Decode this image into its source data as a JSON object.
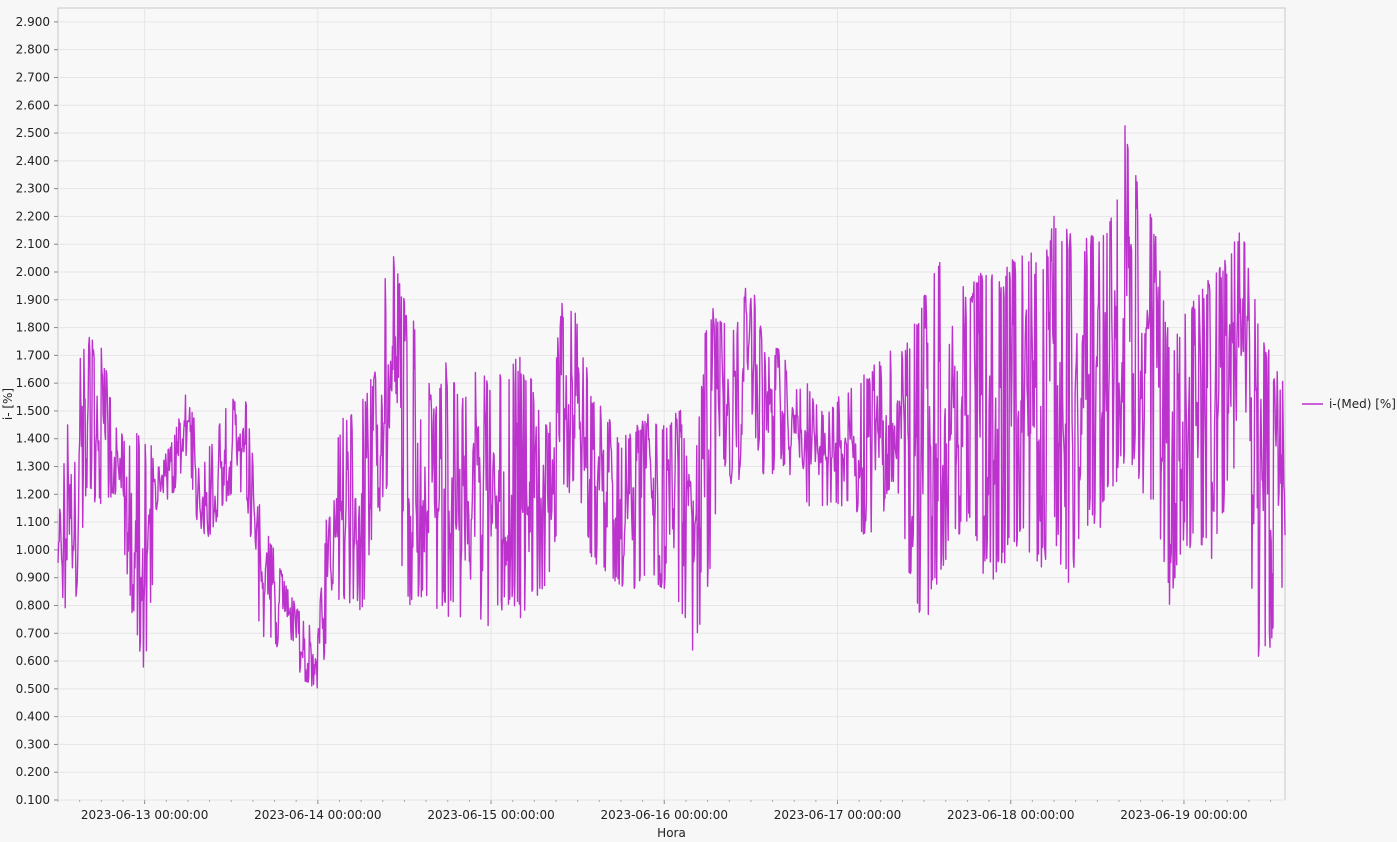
{
  "chart_data": {
    "type": "line",
    "title": "",
    "xlabel": "Hora",
    "ylabel": "i- [%]",
    "ylim": [
      0.1,
      2.95
    ],
    "yticks": [
      0.1,
      0.2,
      0.3,
      0.4,
      0.5,
      0.6,
      0.7,
      0.8,
      0.9,
      1.0,
      1.1,
      1.2,
      1.3,
      1.4,
      1.5,
      1.6,
      1.7,
      1.8,
      1.9,
      2.0,
      2.1,
      2.2,
      2.3,
      2.4,
      2.5,
      2.6,
      2.7,
      2.8,
      2.9
    ],
    "ytick_labels": [
      "0.100",
      "0.200",
      "0.300",
      "0.400",
      "0.500",
      "0.600",
      "0.700",
      "0.800",
      "0.900",
      "1.000",
      "1.100",
      "1.200",
      "1.300",
      "1.400",
      "1.500",
      "1.600",
      "1.700",
      "1.800",
      "1.900",
      "2.000",
      "2.100",
      "2.200",
      "2.300",
      "2.400",
      "2.500",
      "2.600",
      "2.700",
      "2.800",
      "2.900"
    ],
    "xlim": [
      "2023-06-12 12:00",
      "2023-06-19 14:00"
    ],
    "xticks": [
      "2023-06-13 00:00:00",
      "2023-06-14 00:00:00",
      "2023-06-15 00:00:00",
      "2023-06-16 00:00:00",
      "2023-06-17 00:00:00",
      "2023-06-18 00:00:00",
      "2023-06-19 00:00:00"
    ],
    "grid": true,
    "legend_position": "right",
    "series": [
      {
        "name": "i-(Med) [%]",
        "color": "#bb33cc",
        "envelope": [
          {
            "x": "2023-06-12 12:00",
            "y": [
              0.85,
              1.1
            ]
          },
          {
            "x": "2023-06-12 14:00",
            "y": [
              0.7,
              1.65
            ]
          },
          {
            "x": "2023-06-12 16:00",
            "y": [
              1.2,
              1.78
            ]
          },
          {
            "x": "2023-06-12 18:00",
            "y": [
              1.15,
              1.75
            ]
          },
          {
            "x": "2023-06-12 20:00",
            "y": [
              1.2,
              1.45
            ]
          },
          {
            "x": "2023-06-12 22:00",
            "y": [
              0.8,
              1.4
            ]
          },
          {
            "x": "2023-06-13 00:00",
            "y": [
              0.55,
              1.45
            ]
          },
          {
            "x": "2023-06-13 02:00",
            "y": [
              1.15,
              1.3
            ]
          },
          {
            "x": "2023-06-13 04:00",
            "y": [
              1.2,
              1.4
            ]
          },
          {
            "x": "2023-06-13 06:00",
            "y": [
              1.35,
              1.6
            ]
          },
          {
            "x": "2023-06-13 08:00",
            "y": [
              0.95,
              1.3
            ]
          },
          {
            "x": "2023-06-13 10:00",
            "y": [
              1.1,
              1.45
            ]
          },
          {
            "x": "2023-06-13 12:00",
            "y": [
              1.2,
              1.55
            ]
          },
          {
            "x": "2023-06-13 14:00",
            "y": [
              1.2,
              1.55
            ]
          },
          {
            "x": "2023-06-13 16:00",
            "y": [
              0.7,
              1.15
            ]
          },
          {
            "x": "2023-06-13 18:00",
            "y": [
              0.65,
              1.0
            ]
          },
          {
            "x": "2023-06-13 20:00",
            "y": [
              0.62,
              0.85
            ]
          },
          {
            "x": "2023-06-13 22:00",
            "y": [
              0.52,
              0.75
            ]
          },
          {
            "x": "2023-06-14 00:00",
            "y": [
              0.5,
              0.7
            ]
          },
          {
            "x": "2023-06-14 02:00",
            "y": [
              0.75,
              1.4
            ]
          },
          {
            "x": "2023-06-14 04:00",
            "y": [
              0.8,
              1.5
            ]
          },
          {
            "x": "2023-06-14 06:00",
            "y": [
              0.75,
              1.55
            ]
          },
          {
            "x": "2023-06-14 08:00",
            "y": [
              1.1,
              1.65
            ]
          },
          {
            "x": "2023-06-14 10:00",
            "y": [
              1.2,
              2.15
            ]
          },
          {
            "x": "2023-06-14 12:00",
            "y": [
              0.8,
              1.9
            ]
          },
          {
            "x": "2023-06-14 14:00",
            "y": [
              0.8,
              1.85
            ]
          },
          {
            "x": "2023-06-14 16:00",
            "y": [
              0.8,
              1.5
            ]
          },
          {
            "x": "2023-06-14 18:00",
            "y": [
              0.75,
              1.7
            ]
          },
          {
            "x": "2023-06-14 20:00",
            "y": [
              0.75,
              1.55
            ]
          },
          {
            "x": "2023-06-14 22:00",
            "y": [
              0.75,
              1.7
            ]
          },
          {
            "x": "2023-06-15 00:00",
            "y": [
              0.7,
              1.6
            ]
          },
          {
            "x": "2023-06-15 02:00",
            "y": [
              0.8,
              1.65
            ]
          },
          {
            "x": "2023-06-15 04:00",
            "y": [
              0.75,
              1.7
            ]
          },
          {
            "x": "2023-06-15 06:00",
            "y": [
              0.8,
              1.6
            ]
          },
          {
            "x": "2023-06-15 08:00",
            "y": [
              0.9,
              1.45
            ]
          },
          {
            "x": "2023-06-15 10:00",
            "y": [
              1.2,
              1.95
            ]
          },
          {
            "x": "2023-06-15 12:00",
            "y": [
              1.2,
              1.85
            ]
          },
          {
            "x": "2023-06-15 14:00",
            "y": [
              0.95,
              1.55
            ]
          },
          {
            "x": "2023-06-15 16:00",
            "y": [
              0.9,
              1.5
            ]
          },
          {
            "x": "2023-06-15 18:00",
            "y": [
              0.85,
              1.4
            ]
          },
          {
            "x": "2023-06-15 20:00",
            "y": [
              0.85,
              1.45
            ]
          },
          {
            "x": "2023-06-15 22:00",
            "y": [
              0.9,
              1.5
            ]
          },
          {
            "x": "2023-06-16 00:00",
            "y": [
              0.85,
              1.45
            ]
          },
          {
            "x": "2023-06-16 02:00",
            "y": [
              0.8,
              1.55
            ]
          },
          {
            "x": "2023-06-16 04:00",
            "y": [
              0.6,
              1.2
            ]
          },
          {
            "x": "2023-06-16 06:00",
            "y": [
              0.85,
              1.9
            ]
          },
          {
            "x": "2023-06-16 08:00",
            "y": [
              1.3,
              1.85
            ]
          },
          {
            "x": "2023-06-16 10:00",
            "y": [
              1.2,
              1.8
            ]
          },
          {
            "x": "2023-06-16 12:00",
            "y": [
              1.5,
              2.03
            ]
          },
          {
            "x": "2023-06-16 14:00",
            "y": [
              1.2,
              1.7
            ]
          },
          {
            "x": "2023-06-16 16:00",
            "y": [
              1.3,
              1.75
            ]
          },
          {
            "x": "2023-06-16 18:00",
            "y": [
              1.25,
              1.6
            ]
          },
          {
            "x": "2023-06-16 20:00",
            "y": [
              1.15,
              1.6
            ]
          },
          {
            "x": "2023-06-16 22:00",
            "y": [
              1.15,
              1.5
            ]
          },
          {
            "x": "2023-06-17 00:00",
            "y": [
              1.15,
              1.55
            ]
          },
          {
            "x": "2023-06-17 02:00",
            "y": [
              1.15,
              1.6
            ]
          },
          {
            "x": "2023-06-17 04:00",
            "y": [
              1.0,
              1.65
            ]
          },
          {
            "x": "2023-06-17 06:00",
            "y": [
              1.1,
              1.7
            ]
          },
          {
            "x": "2023-06-17 08:00",
            "y": [
              1.25,
              1.75
            ]
          },
          {
            "x": "2023-06-17 10:00",
            "y": [
              0.9,
              1.75
            ]
          },
          {
            "x": "2023-06-17 12:00",
            "y": [
              0.66,
              1.95
            ]
          },
          {
            "x": "2023-06-17 14:00",
            "y": [
              0.9,
              2.1
            ]
          },
          {
            "x": "2023-06-17 16:00",
            "y": [
              1.0,
              2.1
            ]
          },
          {
            "x": "2023-06-17 18:00",
            "y": [
              1.1,
              1.95
            ]
          },
          {
            "x": "2023-06-17 20:00",
            "y": [
              0.9,
              2.0
            ]
          },
          {
            "x": "2023-06-17 22:00",
            "y": [
              0.86,
              2.0
            ]
          },
          {
            "x": "2023-06-18 00:00",
            "y": [
              1.0,
              2.05
            ]
          },
          {
            "x": "2023-06-18 02:00",
            "y": [
              1.0,
              2.1
            ]
          },
          {
            "x": "2023-06-18 04:00",
            "y": [
              0.9,
              2.05
            ]
          },
          {
            "x": "2023-06-18 06:00",
            "y": [
              1.05,
              2.21
            ]
          },
          {
            "x": "2023-06-18 08:00",
            "y": [
              0.8,
              2.15
            ]
          },
          {
            "x": "2023-06-18 10:00",
            "y": [
              1.1,
              2.15
            ]
          },
          {
            "x": "2023-06-18 12:00",
            "y": [
              1.05,
              2.15
            ]
          },
          {
            "x": "2023-06-18 14:00",
            "y": [
              1.2,
              2.2
            ]
          },
          {
            "x": "2023-06-18 16:00",
            "y": [
              1.3,
              2.56
            ]
          },
          {
            "x": "2023-06-18 18:00",
            "y": [
              1.2,
              2.28
            ]
          },
          {
            "x": "2023-06-18 20:00",
            "y": [
              1.1,
              2.2
            ]
          },
          {
            "x": "2023-06-18 22:00",
            "y": [
              0.8,
              1.75
            ]
          },
          {
            "x": "2023-06-19 00:00",
            "y": [
              1.0,
              1.85
            ]
          },
          {
            "x": "2023-06-19 02:00",
            "y": [
              1.0,
              1.95
            ]
          },
          {
            "x": "2023-06-19 04:00",
            "y": [
              0.95,
              2.0
            ]
          },
          {
            "x": "2023-06-19 06:00",
            "y": [
              1.2,
              2.05
            ]
          },
          {
            "x": "2023-06-19 08:00",
            "y": [
              1.3,
              2.17
            ]
          },
          {
            "x": "2023-06-19 10:00",
            "y": [
              0.58,
              1.9
            ]
          },
          {
            "x": "2023-06-19 12:00",
            "y": [
              0.65,
              1.7
            ]
          },
          {
            "x": "2023-06-19 14:00",
            "y": [
              0.85,
              1.6
            ]
          }
        ]
      }
    ]
  }
}
